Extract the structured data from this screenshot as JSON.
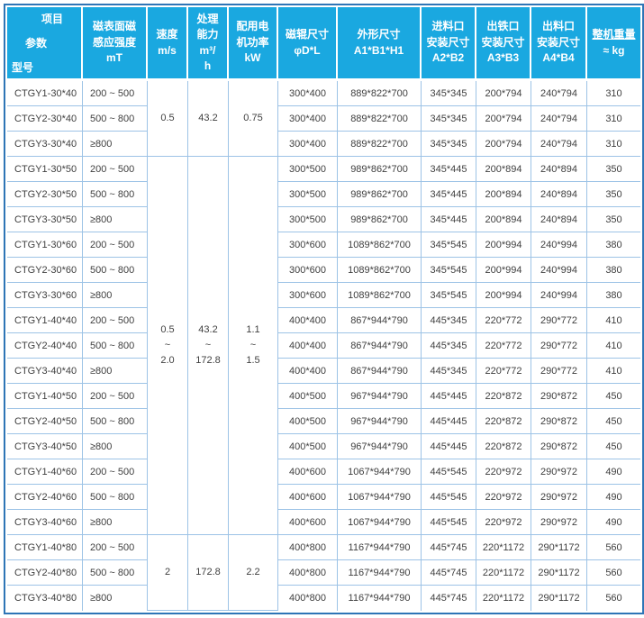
{
  "colors": {
    "header_bg": "#1aa8e0",
    "header_text": "#ffffff",
    "grid_line": "#9dc3e6",
    "outer_border": "#2e75b6",
    "body_text": "#3f3f3f"
  },
  "table": {
    "header": {
      "corner": {
        "top": "项目",
        "mid": "参数",
        "bottom": "型号"
      },
      "columns": [
        {
          "label": "磁表面磁\n感应强度",
          "unit": "mT"
        },
        {
          "label": "速度",
          "unit": "m/s"
        },
        {
          "label": "处理\n能力",
          "unit": "m³/\nh"
        },
        {
          "label": "配用电\n机功率",
          "unit": "kW"
        },
        {
          "label": "磁辊尺寸",
          "unit": "φD*L"
        },
        {
          "label": "外形尺寸",
          "unit": "A1*B1*H1"
        },
        {
          "label": "进料口\n安装尺寸",
          "unit": "A2*B2"
        },
        {
          "label": "出铁口\n安装尺寸",
          "unit": "A3*B3"
        },
        {
          "label": "出料口\n安装尺寸",
          "unit": "A4*B4"
        },
        {
          "label": "整机重量",
          "unit": "≈ kg"
        }
      ]
    },
    "merged": [
      {
        "at": 0,
        "span": 3,
        "speed": "0.5",
        "capacity": "43.2",
        "power": "0.75"
      },
      {
        "at": 3,
        "span": 15,
        "speed": "0.5\n~\n2.0",
        "capacity": "43.2\n~\n172.8",
        "power": "1.1\n~\n1.5"
      },
      {
        "at": 18,
        "span": 3,
        "speed": "2",
        "capacity": "172.8",
        "power": "2.2"
      }
    ],
    "rows": [
      {
        "model": "CTGY1-30*40",
        "mt": "200 ~ 500",
        "roller": "300*400",
        "overall": "889*822*700",
        "inlet": "345*345",
        "iron": "200*794",
        "outlet": "240*794",
        "weight": "310"
      },
      {
        "model": "CTGY2-30*40",
        "mt": "500 ~ 800",
        "roller": "300*400",
        "overall": "889*822*700",
        "inlet": "345*345",
        "iron": "200*794",
        "outlet": "240*794",
        "weight": "310"
      },
      {
        "model": "CTGY3-30*40",
        "mt": "≥800",
        "roller": "300*400",
        "overall": "889*822*700",
        "inlet": "345*345",
        "iron": "200*794",
        "outlet": "240*794",
        "weight": "310"
      },
      {
        "model": "CTGY1-30*50",
        "mt": "200 ~ 500",
        "roller": "300*500",
        "overall": "989*862*700",
        "inlet": "345*445",
        "iron": "200*894",
        "outlet": "240*894",
        "weight": "350"
      },
      {
        "model": "CTGY2-30*50",
        "mt": "500 ~ 800",
        "roller": "300*500",
        "overall": "989*862*700",
        "inlet": "345*445",
        "iron": "200*894",
        "outlet": "240*894",
        "weight": "350"
      },
      {
        "model": "CTGY3-30*50",
        "mt": "≥800",
        "roller": "300*500",
        "overall": "989*862*700",
        "inlet": "345*445",
        "iron": "200*894",
        "outlet": "240*894",
        "weight": "350"
      },
      {
        "model": "CTGY1-30*60",
        "mt": "200 ~ 500",
        "roller": "300*600",
        "overall": "1089*862*700",
        "inlet": "345*545",
        "iron": "200*994",
        "outlet": "240*994",
        "weight": "380"
      },
      {
        "model": "CTGY2-30*60",
        "mt": "500 ~ 800",
        "roller": "300*600",
        "overall": "1089*862*700",
        "inlet": "345*545",
        "iron": "200*994",
        "outlet": "240*994",
        "weight": "380"
      },
      {
        "model": "CTGY3-30*60",
        "mt": "≥800",
        "roller": "300*600",
        "overall": "1089*862*700",
        "inlet": "345*545",
        "iron": "200*994",
        "outlet": "240*994",
        "weight": "380"
      },
      {
        "model": "CTGY1-40*40",
        "mt": "200 ~ 500",
        "roller": "400*400",
        "overall": "867*944*790",
        "inlet": "445*345",
        "iron": "220*772",
        "outlet": "290*772",
        "weight": "410"
      },
      {
        "model": "CTGY2-40*40",
        "mt": "500 ~ 800",
        "roller": "400*400",
        "overall": "867*944*790",
        "inlet": "445*345",
        "iron": "220*772",
        "outlet": "290*772",
        "weight": "410"
      },
      {
        "model": "CTGY3-40*40",
        "mt": "≥800",
        "roller": "400*400",
        "overall": "867*944*790",
        "inlet": "445*345",
        "iron": "220*772",
        "outlet": "290*772",
        "weight": "410"
      },
      {
        "model": "CTGY1-40*50",
        "mt": "200 ~ 500",
        "roller": "400*500",
        "overall": "967*944*790",
        "inlet": "445*445",
        "iron": "220*872",
        "outlet": "290*872",
        "weight": "450"
      },
      {
        "model": "CTGY2-40*50",
        "mt": "500 ~ 800",
        "roller": "400*500",
        "overall": "967*944*790",
        "inlet": "445*445",
        "iron": "220*872",
        "outlet": "290*872",
        "weight": "450"
      },
      {
        "model": "CTGY3-40*50",
        "mt": "≥800",
        "roller": "400*500",
        "overall": "967*944*790",
        "inlet": "445*445",
        "iron": "220*872",
        "outlet": "290*872",
        "weight": "450"
      },
      {
        "model": "CTGY1-40*60",
        "mt": "200 ~ 500",
        "roller": "400*600",
        "overall": "1067*944*790",
        "inlet": "445*545",
        "iron": "220*972",
        "outlet": "290*972",
        "weight": "490"
      },
      {
        "model": "CTGY2-40*60",
        "mt": "500 ~ 800",
        "roller": "400*600",
        "overall": "1067*944*790",
        "inlet": "445*545",
        "iron": "220*972",
        "outlet": "290*972",
        "weight": "490"
      },
      {
        "model": "CTGY3-40*60",
        "mt": "≥800",
        "roller": "400*600",
        "overall": "1067*944*790",
        "inlet": "445*545",
        "iron": "220*972",
        "outlet": "290*972",
        "weight": "490"
      },
      {
        "model": "CTGY1-40*80",
        "mt": "200 ~ 500",
        "roller": "400*800",
        "overall": "1167*944*790",
        "inlet": "445*745",
        "iron": "220*1172",
        "outlet": "290*1172",
        "weight": "560"
      },
      {
        "model": "CTGY2-40*80",
        "mt": "500 ~ 800",
        "roller": "400*800",
        "overall": "1167*944*790",
        "inlet": "445*745",
        "iron": "220*1172",
        "outlet": "290*1172",
        "weight": "560"
      },
      {
        "model": "CTGY3-40*80",
        "mt": "≥800",
        "roller": "400*800",
        "overall": "1167*944*790",
        "inlet": "445*745",
        "iron": "220*1172",
        "outlet": "290*1172",
        "weight": "560"
      }
    ]
  }
}
